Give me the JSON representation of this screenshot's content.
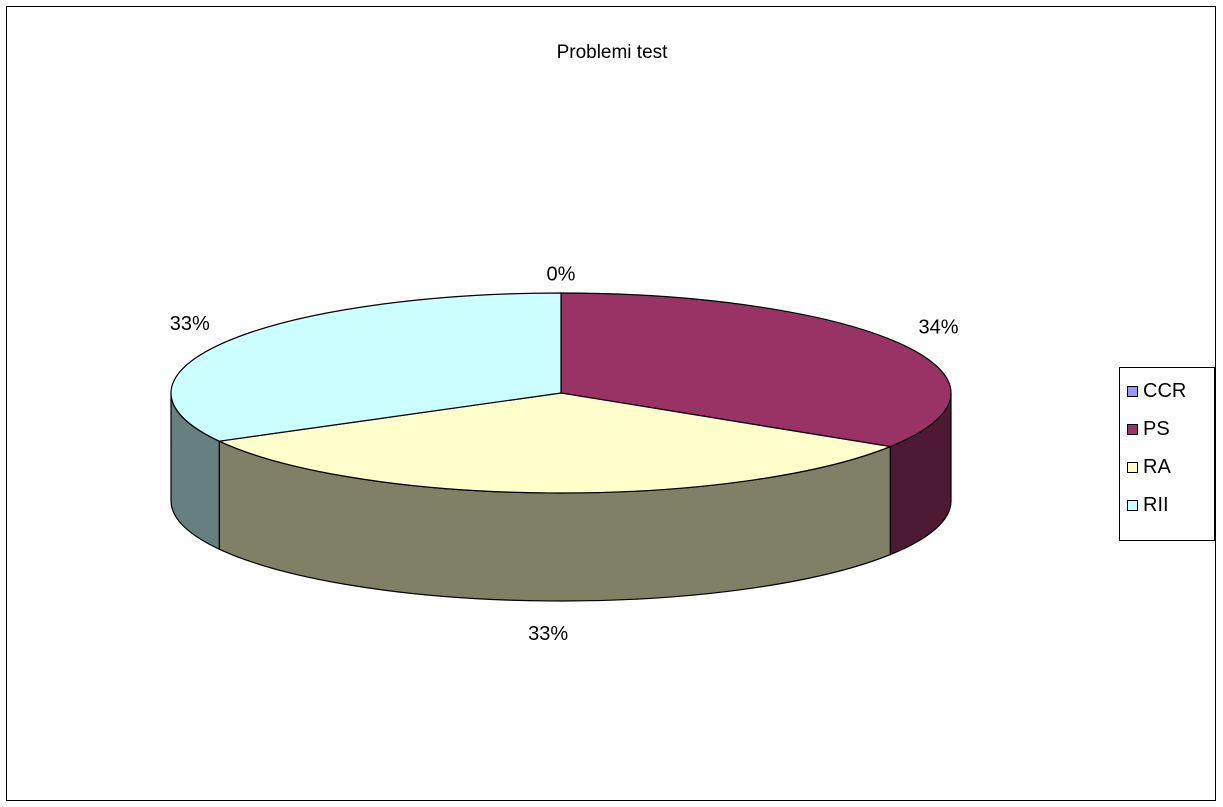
{
  "chart_data": {
    "type": "pie",
    "title": "Problemi test",
    "categories": [
      "CCR",
      "PS",
      "RA",
      "RII"
    ],
    "values": [
      0,
      34,
      33,
      33
    ],
    "data_labels": [
      "0%",
      "34%",
      "33%",
      "33%"
    ],
    "colors": [
      "#9999FF",
      "#993366",
      "#FFFFCC",
      "#CCFFFF"
    ],
    "side_colors": [
      "#4d4d80",
      "#4d1933",
      "#808066",
      "#668080"
    ],
    "three_d": true,
    "legend_position": "right"
  }
}
